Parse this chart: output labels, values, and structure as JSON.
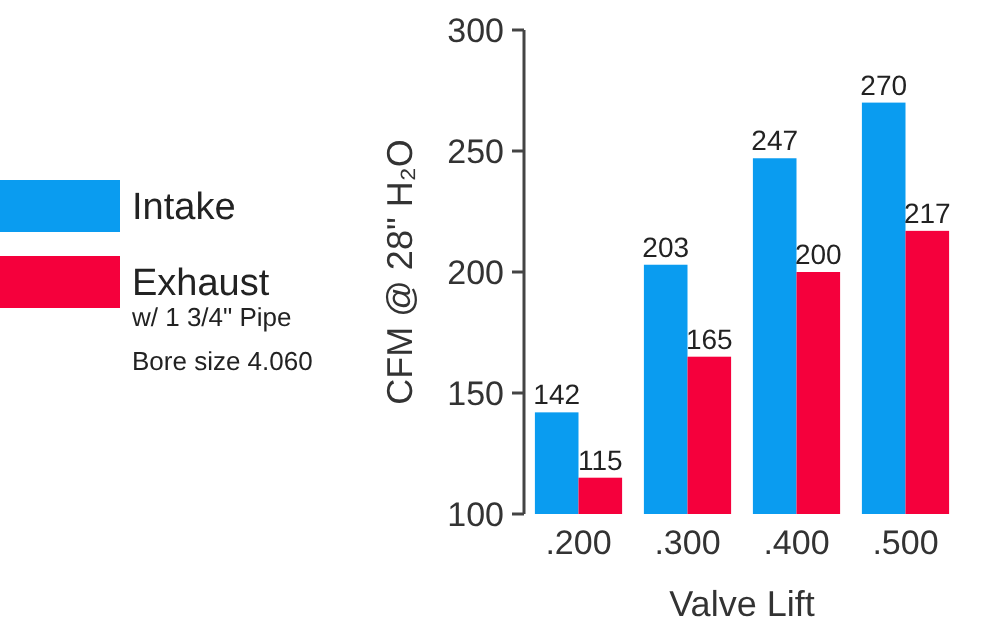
{
  "chart_data": {
    "type": "bar",
    "xlabel": "Valve Lift",
    "ylabel": "CFM @ 28\" H₂O",
    "categories": [
      ".200",
      ".300",
      ".400",
      ".500"
    ],
    "series": [
      {
        "name": "Intake",
        "color": "#0a9cf0",
        "values": [
          142,
          203,
          247,
          270
        ]
      },
      {
        "name": "Exhaust",
        "color": "#f5003c",
        "values": [
          115,
          165,
          200,
          217
        ]
      }
    ],
    "ylim": [
      100,
      300
    ],
    "yticks": [
      100,
      150,
      200,
      250,
      300
    ],
    "grid": false,
    "legend": "left",
    "data_labels": true,
    "annotations": [
      "w/ 1 3/4\" Pipe",
      "Bore size 4.060"
    ]
  }
}
